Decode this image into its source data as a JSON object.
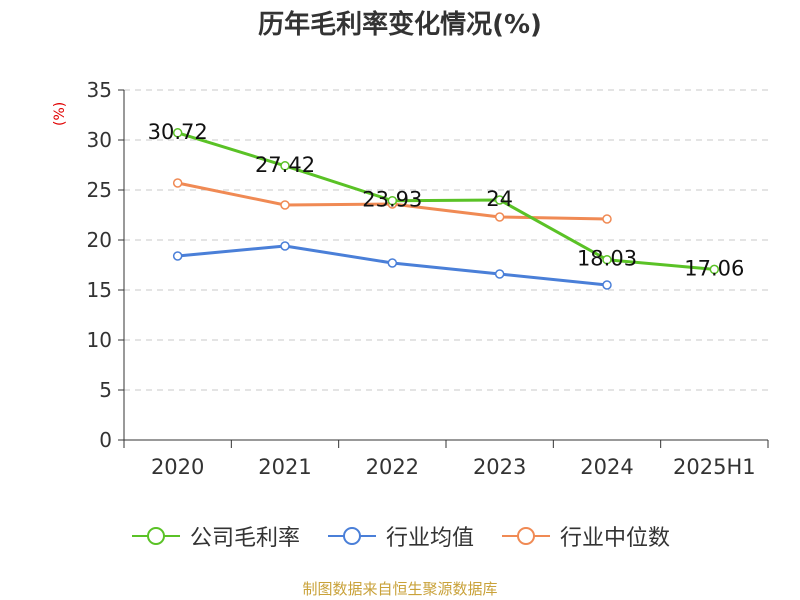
{
  "title": "历年毛利率变化情况(%)",
  "source": "制图数据来自恒生聚源数据库",
  "chart_data": {
    "type": "line",
    "title": "历年毛利率变化情况(%)",
    "ylabel": "(%)",
    "xlabel": "",
    "categories": [
      "2020",
      "2021",
      "2022",
      "2023",
      "2024",
      "2025H1"
    ],
    "yticks": [
      "0",
      "5",
      "10",
      "15",
      "20",
      "25",
      "30",
      "35"
    ],
    "ylim": [
      0,
      35
    ],
    "grid": true,
    "legend_position": "bottom",
    "series": [
      {
        "name": "公司毛利率",
        "color": "#5ac226",
        "values": [
          30.72,
          27.42,
          23.93,
          24,
          18.03,
          17.06
        ],
        "labels": [
          "30.72",
          "27.42",
          "23.93",
          "24",
          "18.03",
          "17.06"
        ]
      },
      {
        "name": "行业均值",
        "color": "#4a7fd8",
        "values": [
          18.4,
          19.4,
          17.7,
          16.6,
          15.5,
          null
        ],
        "labels": []
      },
      {
        "name": "行业中位数",
        "color": "#f08a54",
        "values": [
          25.7,
          23.5,
          23.6,
          22.3,
          22.1,
          null
        ],
        "labels": []
      }
    ]
  }
}
